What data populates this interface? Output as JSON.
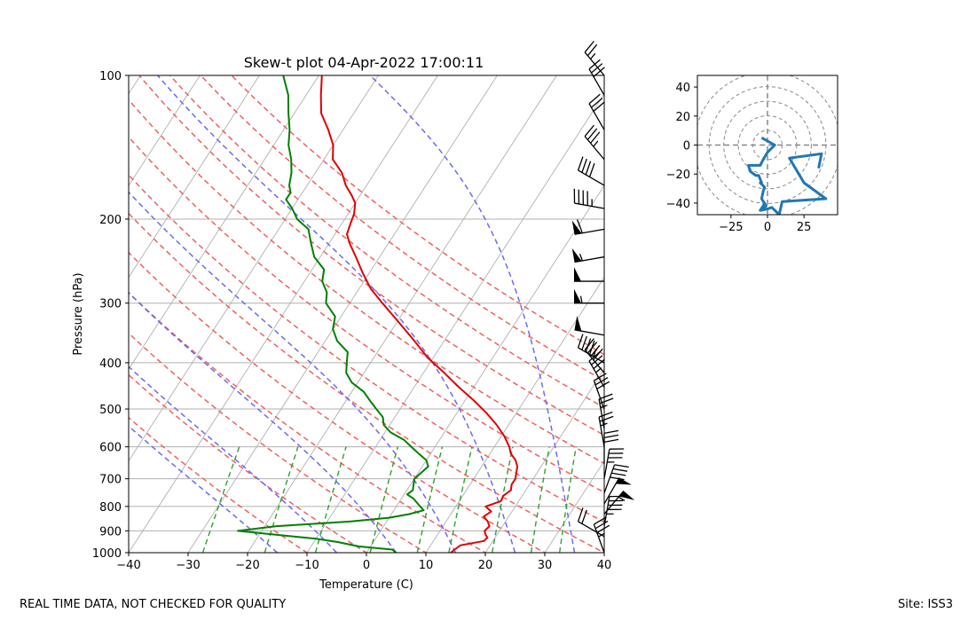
{
  "footer": {
    "left_text": "REAL TIME DATA, NOT CHECKED FOR QUALITY",
    "right_text": "Site: ISS3"
  },
  "colors": {
    "temperature": "#e00000",
    "dewpoint": "#008000",
    "dry_adiabat": "#f06060",
    "moist_adiabat": "#6a6af0",
    "mixing_ratio": "#30a030",
    "isotherm": "#b0b0b0",
    "isobar": "#b0b0b0",
    "hodograph": "#1f77b4",
    "hodo_ring": "#888888"
  },
  "chart_data": [
    {
      "type": "line",
      "name": "skew-t",
      "title": "Skew-t plot 04-Apr-2022 17:00:11",
      "xlabel": "Temperature (C)",
      "ylabel": "Pressure (hPa)",
      "xlim": [
        -40,
        40
      ],
      "ylim": [
        1000,
        100
      ],
      "x_ticks": [
        -40,
        -30,
        -20,
        -10,
        0,
        10,
        20,
        30,
        40
      ],
      "y_ticks": [
        1000,
        900,
        800,
        700,
        600,
        500,
        400,
        300,
        200,
        100
      ],
      "y_scale": "log",
      "skew_deg_per_decade": 52,
      "series": [
        {
          "name": "Temperature",
          "p": [
            1000,
            985,
            965,
            945,
            930,
            915,
            900,
            880,
            860,
            840,
            820,
            800,
            780,
            760,
            740,
            720,
            700,
            680,
            660,
            640,
            620,
            600,
            570,
            540,
            510,
            480,
            450,
            420,
            390,
            360,
            330,
            300,
            280,
            260,
            240,
            225,
            215,
            205,
            195,
            185,
            178,
            170,
            160,
            150,
            140,
            130,
            120,
            110,
            100
          ],
          "t": [
            14.2,
            14.5,
            15.0,
            18.5,
            18.7,
            18.0,
            17.5,
            17.8,
            17.0,
            15.8,
            16.5,
            15.0,
            17.0,
            16.8,
            17.5,
            17.0,
            17.0,
            16.5,
            16.0,
            15.0,
            13.5,
            12.5,
            10.5,
            8.0,
            5.0,
            1.5,
            -2.5,
            -6.5,
            -11.0,
            -15.0,
            -19.5,
            -24.5,
            -28.0,
            -31.0,
            -34.0,
            -36.5,
            -38.0,
            -38.5,
            -39.0,
            -40.0,
            -41.5,
            -43.5,
            -45.5,
            -48.5,
            -50.0,
            -52.5,
            -55.5,
            -57.5,
            -59.5
          ]
        },
        {
          "name": "Dewpoint",
          "p": [
            1000,
            985,
            970,
            950,
            935,
            920,
            900,
            880,
            860,
            845,
            830,
            815,
            800,
            785,
            770,
            755,
            740,
            720,
            700,
            680,
            660,
            640,
            620,
            600,
            580,
            560,
            540,
            520,
            500,
            480,
            460,
            440,
            420,
            400,
            380,
            360,
            340,
            320,
            300,
            285,
            270,
            255,
            240,
            225,
            210,
            200,
            190,
            182,
            176,
            170,
            160,
            150,
            140,
            130,
            120,
            110,
            100
          ],
          "t": [
            5.0,
            4.0,
            -2.0,
            -6.0,
            -10.0,
            -16.0,
            -24.0,
            -18.0,
            -6.0,
            0.0,
            3.0,
            5.0,
            4.0,
            3.0,
            2.0,
            0.5,
            1.0,
            0.5,
            0.0,
            0.5,
            1.0,
            0.0,
            -2.0,
            -4.0,
            -6.0,
            -9.0,
            -11.0,
            -12.0,
            -14.0,
            -16.0,
            -18.0,
            -21.0,
            -23.0,
            -24.0,
            -25.0,
            -28.0,
            -30.0,
            -31.0,
            -34.0,
            -35.0,
            -37.0,
            -38.0,
            -41.0,
            -43.0,
            -45.0,
            -48.0,
            -50.0,
            -52.0,
            -52.0,
            -53.0,
            -54.0,
            -55.5,
            -57.5,
            -59.0,
            -61.0,
            -63.0,
            -66.0
          ]
        }
      ],
      "dry_adiabats_theta_c": [
        -10,
        0,
        10,
        20,
        30,
        40,
        50,
        60,
        70,
        80,
        90,
        100,
        110
      ],
      "moist_adiabats_theta_w_c": [
        -15,
        -5,
        5,
        15,
        25,
        35
      ],
      "mixing_ratio_lines_gkg": [
        0.4,
        1,
        2,
        4,
        7,
        10,
        16,
        24,
        32
      ],
      "wind_barbs": {
        "p": [
          1000,
          925,
          880,
          830,
          790,
          750,
          700,
          650,
          600,
          550,
          500,
          450,
          420,
          400,
          350,
          300,
          270,
          240,
          210,
          190,
          170,
          150,
          130,
          110,
          100
        ],
        "speed_kt": [
          35,
          20,
          45,
          55,
          50,
          40,
          35,
          30,
          25,
          25,
          30,
          35,
          40,
          45,
          50,
          55,
          50,
          55,
          60,
          45,
          40,
          35,
          30,
          30,
          25
        ],
        "dir_deg": [
          340,
          300,
          10,
          40,
          30,
          20,
          10,
          0,
          350,
          350,
          340,
          330,
          320,
          300,
          280,
          270,
          270,
          260,
          260,
          280,
          300,
          320,
          330,
          330,
          320
        ]
      }
    },
    {
      "type": "line",
      "name": "hodograph",
      "xlim": [
        -48,
        48
      ],
      "ylim": [
        -48,
        48
      ],
      "x_ticks": [
        -25,
        0,
        25
      ],
      "y_ticks": [
        40,
        20,
        0,
        -20,
        -40
      ],
      "ring_radii": [
        10,
        20,
        30,
        40,
        50
      ],
      "u": [
        -4,
        5,
        0,
        -3,
        -5,
        -13,
        -12,
        -8,
        -6,
        -4,
        -5,
        -2,
        -3,
        -4,
        -1,
        -4,
        -2,
        -3,
        -5,
        0,
        3,
        8,
        10,
        25,
        40,
        25,
        15,
        37,
        35
      ],
      "v": [
        5,
        0,
        -5,
        -10,
        -14,
        -14,
        -18,
        -21,
        -21,
        -26,
        -26,
        -29,
        -32,
        -37,
        -42,
        -44,
        -40,
        -42,
        -45,
        -44,
        -43,
        -48,
        -39,
        -38,
        -37,
        -26,
        -9,
        -6,
        -16
      ]
    }
  ]
}
